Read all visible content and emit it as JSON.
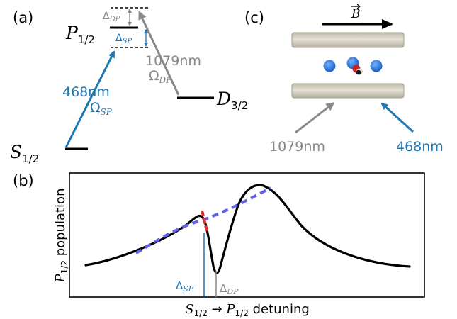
{
  "panels": {
    "a": {
      "label": "(a)",
      "levels": {
        "s": {
          "main": "S",
          "sub": "1/2"
        },
        "p": {
          "main": "P",
          "sub": "1/2"
        },
        "d": {
          "main": "D",
          "sub": "3/2"
        }
      },
      "detunings": {
        "dp": {
          "main": "Δ",
          "sub": "DP"
        },
        "sp": {
          "main": "Δ",
          "sub": "SP"
        }
      },
      "blue_laser": {
        "wavelength": "468nm",
        "rabi": {
          "main": "Ω",
          "sub": "SP"
        }
      },
      "gray_laser": {
        "wavelength": "1079nm",
        "rabi": {
          "main": "Ω",
          "sub": "DP"
        }
      }
    },
    "b": {
      "label": "(b)",
      "ylabel": {
        "main": "P",
        "sub": "1/2",
        "rest": " population"
      },
      "xlabel": {
        "s_main": "S",
        "s_sub": "1/2",
        "arrow": " → ",
        "p_main": "P",
        "p_sub": "1/2",
        "rest": " detuning"
      },
      "marker_sp": {
        "main": "Δ",
        "sub": "SP"
      },
      "marker_dp": {
        "main": "Δ",
        "sub": "DP"
      }
    },
    "c": {
      "label": "(c)",
      "field": "B",
      "gray_beam": "1079nm",
      "blue_beam": "468nm"
    }
  },
  "colors": {
    "blue": "#1f77b4",
    "gray": "#888888",
    "black": "#000000",
    "red": "#e8302a",
    "dashed_blue": "#6060e8",
    "electrode": "#cfcabb",
    "ion": "#2f7fe0"
  }
}
